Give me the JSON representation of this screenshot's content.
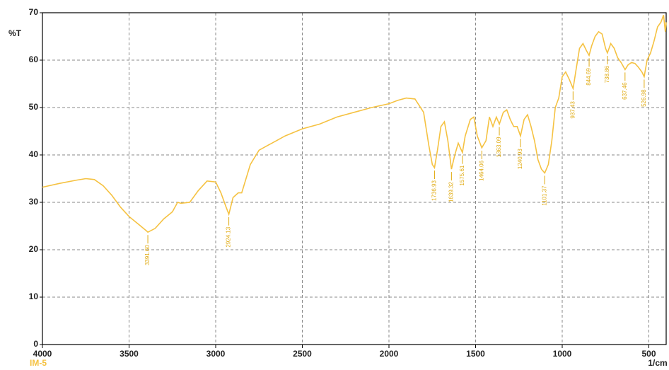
{
  "chart_data": {
    "type": "line",
    "ylabel": "%T",
    "xlabel": "1/cm",
    "xlim": [
      4000,
      400
    ],
    "ylim": [
      0,
      70
    ],
    "xticks": [
      4000,
      3500,
      3000,
      2500,
      2000,
      1500,
      1000,
      500
    ],
    "yticks": [
      0,
      10,
      20,
      30,
      40,
      50,
      60,
      70
    ],
    "grid": true,
    "x": [
      4000,
      3900,
      3800,
      3750,
      3700,
      3650,
      3600,
      3550,
      3500,
      3450,
      3400,
      3391.6,
      3350,
      3300,
      3250,
      3220,
      3200,
      3150,
      3100,
      3050,
      3000,
      2970,
      2940,
      2924,
      2900,
      2870,
      2850,
      2800,
      2750,
      2700,
      2650,
      2600,
      2500,
      2400,
      2300,
      2200,
      2100,
      2000,
      1950,
      1900,
      1850,
      1800,
      1770,
      1750,
      1737,
      1720,
      1700,
      1680,
      1660,
      1639,
      1620,
      1600,
      1576,
      1560,
      1530,
      1510,
      1490,
      1464,
      1440,
      1420,
      1400,
      1380,
      1363,
      1340,
      1320,
      1300,
      1280,
      1260,
      1241,
      1220,
      1200,
      1180,
      1160,
      1140,
      1120,
      1101,
      1080,
      1060,
      1040,
      1020,
      1000,
      980,
      960,
      937,
      920,
      900,
      880,
      860,
      845,
      830,
      810,
      790,
      770,
      750,
      739,
      720,
      700,
      680,
      660,
      637,
      620,
      600,
      580,
      560,
      540,
      527,
      510,
      490,
      470,
      450,
      430,
      415,
      405,
      400
    ],
    "series": [
      {
        "name": "IM-5",
        "color": "#f5c242",
        "values": [
          33.2,
          34,
          34.7,
          35,
          34.8,
          33.5,
          31.5,
          29,
          27,
          25.5,
          24,
          23.7,
          24.5,
          26.5,
          28,
          30,
          29.8,
          30,
          32.5,
          34.5,
          34.3,
          32,
          29,
          27.5,
          31,
          32,
          32,
          38,
          41,
          42,
          43,
          44,
          45.5,
          46.5,
          48,
          49,
          50,
          50.8,
          51.5,
          52,
          51.8,
          49,
          42,
          38,
          37.3,
          41,
          46,
          47,
          43,
          37,
          40,
          42.5,
          40.5,
          44,
          47.5,
          48,
          44,
          41.5,
          43,
          48,
          46,
          48,
          46.5,
          49,
          49.5,
          47.5,
          46,
          46,
          44,
          47.5,
          48.5,
          46,
          43,
          39,
          37,
          36.2,
          38,
          43,
          50,
          52,
          56.5,
          57.5,
          56,
          54,
          58,
          62.5,
          63.5,
          62,
          61,
          63,
          65,
          66,
          65.5,
          62.5,
          61.5,
          63.5,
          62.5,
          60.5,
          59.5,
          58,
          59,
          59.5,
          59.3,
          58.5,
          57.5,
          56.5,
          60,
          61.5,
          64,
          67,
          68,
          69.5,
          66,
          68
        ]
      }
    ],
    "peaks": [
      {
        "value": 3391.6,
        "label": "3391.60",
        "y": 23.7
      },
      {
        "value": 2924.13,
        "label": "2924.13",
        "y": 27.5
      },
      {
        "value": 1736.93,
        "label": "1736.93",
        "y": 37.3
      },
      {
        "value": 1639.32,
        "label": "1639.32",
        "y": 37
      },
      {
        "value": 1575.61,
        "label": "1575.61",
        "y": 40.5
      },
      {
        "value": 1464.06,
        "label": "1464.06",
        "y": 41.5
      },
      {
        "value": 1363.09,
        "label": "1363.09",
        "y": 46.5
      },
      {
        "value": 1240.93,
        "label": "1240.93",
        "y": 44
      },
      {
        "value": 1101.37,
        "label": "1101.37",
        "y": 36.2
      },
      {
        "value": 937.43,
        "label": "937.43",
        "y": 54
      },
      {
        "value": 844.69,
        "label": "844.69",
        "y": 61
      },
      {
        "value": 738.86,
        "label": "738.86",
        "y": 61.5
      },
      {
        "value": 637.46,
        "label": "637.46",
        "y": 58
      },
      {
        "value": 526.98,
        "label": "526.98",
        "y": 56.5
      }
    ]
  }
}
